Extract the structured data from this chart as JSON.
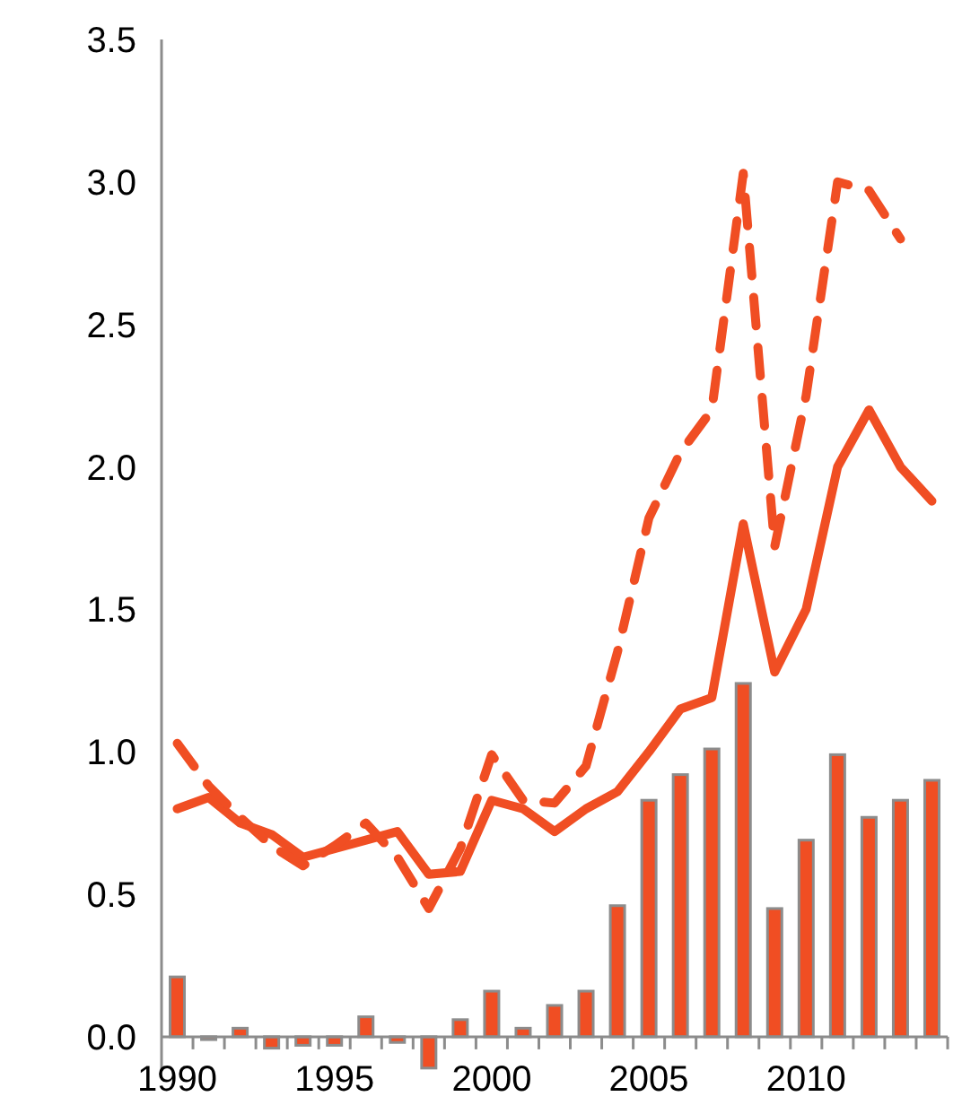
{
  "chart_data": {
    "type": "bar",
    "x": [
      1990,
      1991,
      1992,
      1993,
      1994,
      1995,
      1996,
      1997,
      1998,
      1999,
      2000,
      2001,
      2002,
      2003,
      2004,
      2005,
      2006,
      2007,
      2008,
      2009,
      2010,
      2011,
      2012,
      2013,
      2014
    ],
    "series": [
      {
        "color": "#f04e23",
        "values": [
          0.21,
          -0.01,
          0.03,
          -0.04,
          -0.03,
          -0.03,
          0.07,
          -0.02,
          -0.11,
          0.06,
          0.16,
          0.03,
          0.11,
          0.16,
          0.46,
          0.83,
          0.92,
          1.01,
          1.24,
          0.45,
          0.69,
          0.99,
          0.77,
          0.83,
          0.9
        ]
      },
      {
        "type": "line",
        "color": "#f04e23",
        "line_style": "solid",
        "values": [
          0.8,
          0.84,
          0.75,
          0.71,
          0.63,
          0.66,
          0.69,
          0.72,
          0.57,
          0.58,
          0.83,
          0.8,
          0.72,
          0.8,
          0.86,
          1.0,
          1.15,
          1.19,
          1.8,
          1.28,
          1.5,
          2.0,
          2.2,
          2.0,
          1.88
        ]
      },
      {
        "type": "line",
        "color": "#f04e23",
        "line_style": "dashed",
        "values": [
          1.03,
          0.88,
          0.77,
          0.67,
          0.6,
          0.67,
          0.75,
          0.63,
          0.45,
          0.66,
          0.99,
          0.83,
          0.82,
          0.95,
          1.35,
          1.82,
          2.05,
          2.2,
          3.03,
          1.72,
          2.25,
          3.0,
          2.97,
          2.8,
          null
        ]
      }
    ],
    "xlim": [
      1989.5,
      2014.5
    ],
    "xticks": [
      1990,
      1995,
      2000,
      2005,
      2010,
      {
        "value": 1990.5,
        "label": null
      },
      {
        "value": 1991.5,
        "label": null
      },
      {
        "value": 1992.5,
        "label": null
      },
      {
        "value": 1993.5,
        "label": null
      },
      {
        "value": 1994.5,
        "label": null
      },
      {
        "value": 1995.5,
        "label": null
      },
      {
        "value": 1996.5,
        "label": null
      },
      {
        "value": 1997.5,
        "label": null
      },
      {
        "value": 1998.5,
        "label": null
      },
      {
        "value": 1999.5,
        "label": null
      },
      {
        "value": 2000.5,
        "label": null
      },
      {
        "value": 2001.5,
        "label": null
      },
      {
        "value": 2002.5,
        "label": null
      },
      {
        "value": 2003.5,
        "label": null
      },
      {
        "value": 2004.5,
        "label": null
      },
      {
        "value": 2005.5,
        "label": null
      },
      {
        "value": 2006.5,
        "label": null
      },
      {
        "value": 2007.5,
        "label": null
      },
      {
        "value": 2008.5,
        "label": null
      },
      {
        "value": 2009.5,
        "label": null
      },
      {
        "value": 2010.5,
        "label": null
      },
      {
        "value": 2011.5,
        "label": null
      },
      {
        "value": 2012.5,
        "label": null
      },
      {
        "value": 2013.5,
        "label": null
      },
      {
        "value": 2014.5,
        "label": null
      }
    ],
    "ylim": [
      -0.12,
      3.5
    ],
    "yticks": [
      {
        "value": 0,
        "label": "0.0"
      },
      {
        "value": 0.5,
        "label": "0.5"
      },
      {
        "value": 1,
        "label": "1.0"
      },
      {
        "value": 1.5,
        "label": "1.5"
      },
      {
        "value": 2,
        "label": "2.0"
      },
      {
        "value": 2.5,
        "label": "2.5"
      },
      {
        "value": 3,
        "label": "3.0"
      },
      {
        "value": 3.5,
        "label": "3.5"
      }
    ],
    "grid": false
  }
}
